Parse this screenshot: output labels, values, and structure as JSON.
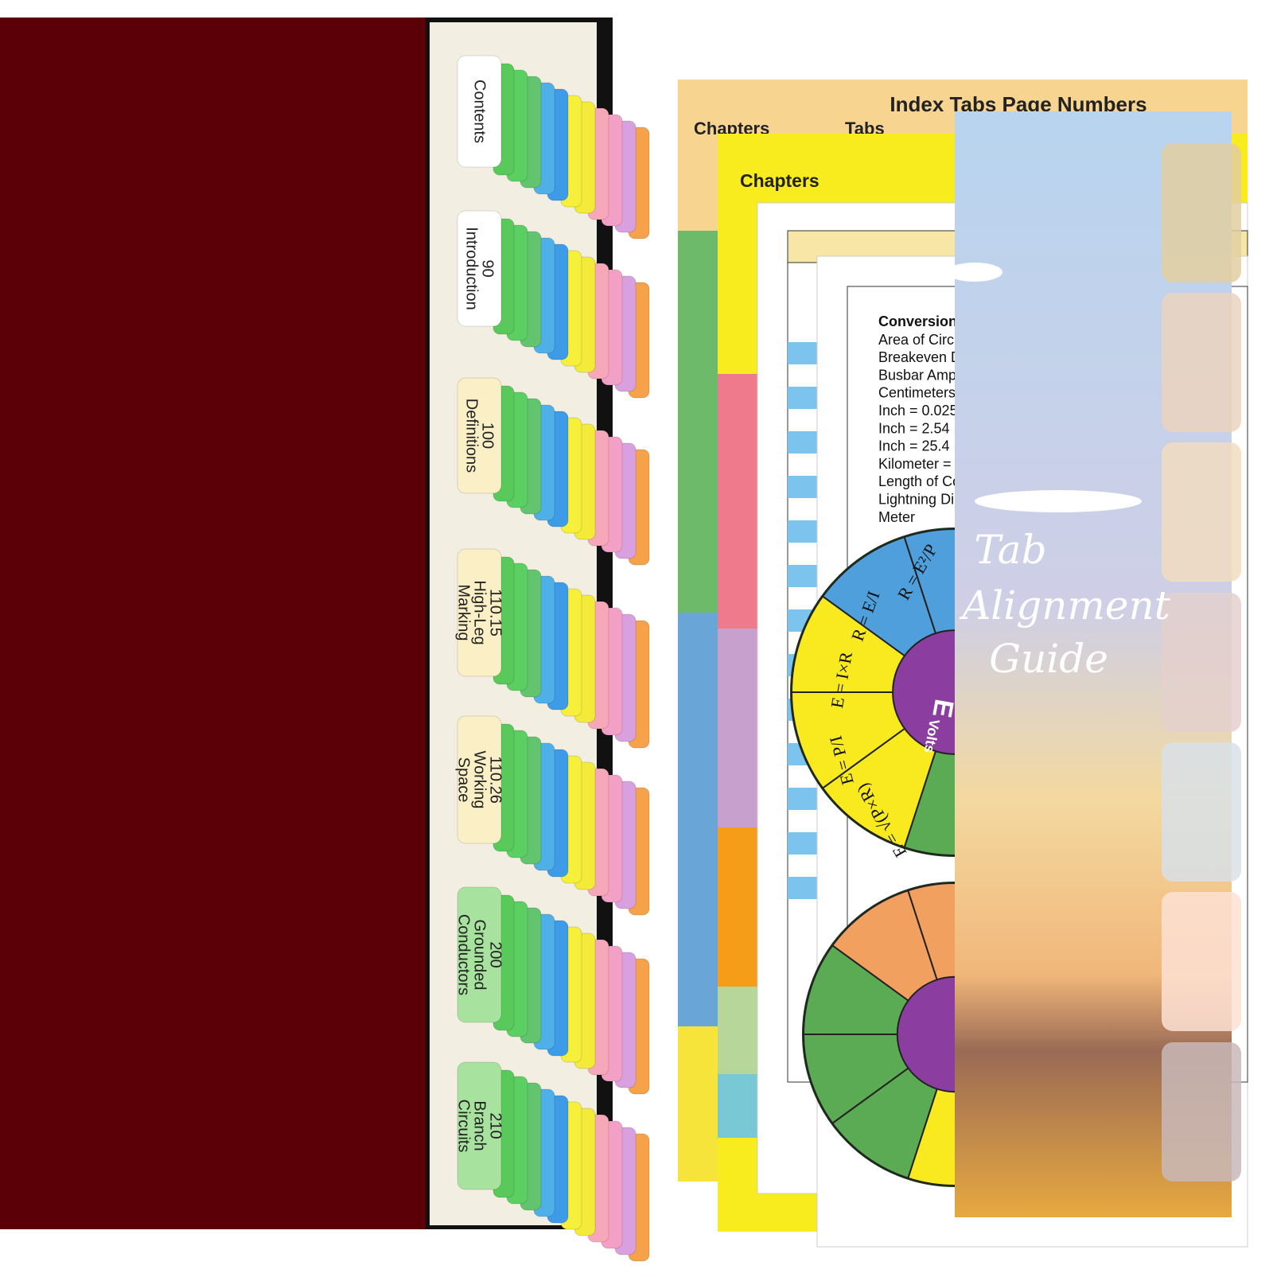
{
  "book": {
    "tabs": [
      [
        "Contents"
      ],
      [
        "90",
        "Introduction"
      ],
      [
        "100",
        "Definitions"
      ],
      [
        "110.15",
        "High-Leg",
        "Marking"
      ],
      [
        "110.26",
        "Working",
        "Space"
      ],
      [
        "200",
        "Grounded",
        "Conductors"
      ],
      [
        "210",
        "Branch",
        "Circuits"
      ]
    ]
  },
  "index_sheet": {
    "title": "Index Tabs Page Numbers",
    "headers": [
      "Chapters",
      "Tabs"
    ]
  },
  "chapters_sheet": {
    "header": "Chapters"
  },
  "conversion_sheet": {
    "title": "Conversion",
    "items": [
      "Area of Circl",
      "Breakeven D",
      "Busbar Amp",
      "Centimeters",
      "Inch = 0.025",
      "Inch = 2.54",
      "Inch = 25.4",
      "Kilometer =",
      "Length of Co",
      "Lightning Di",
      "Meter"
    ]
  },
  "wheels": {
    "center_labels": [
      "Volts",
      "E"
    ],
    "formulas": [
      "R = E²/P",
      "R = E/I",
      "E = I×R",
      "E = P/I",
      "E = √(P×R)"
    ]
  },
  "guide": {
    "title": [
      "Tab",
      "Alignment",
      "Guide"
    ]
  }
}
